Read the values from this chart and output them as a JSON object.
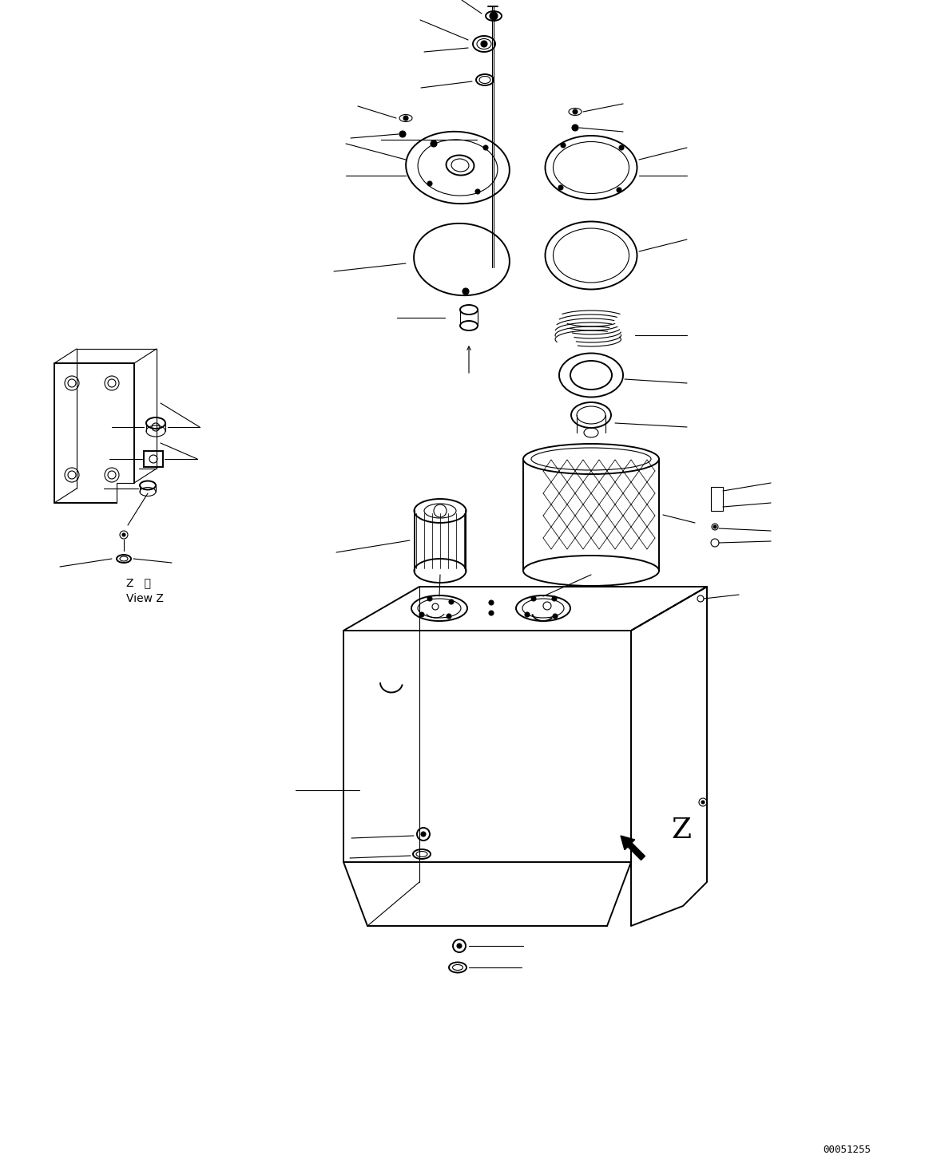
{
  "bg_color": "#ffffff",
  "line_color": "#000000",
  "fig_width": 11.63,
  "fig_height": 14.57,
  "dpi": 100,
  "footer_text": "00051255",
  "view_label_1": "Z   視",
  "view_label_2": "View Z",
  "z_label": "Z"
}
